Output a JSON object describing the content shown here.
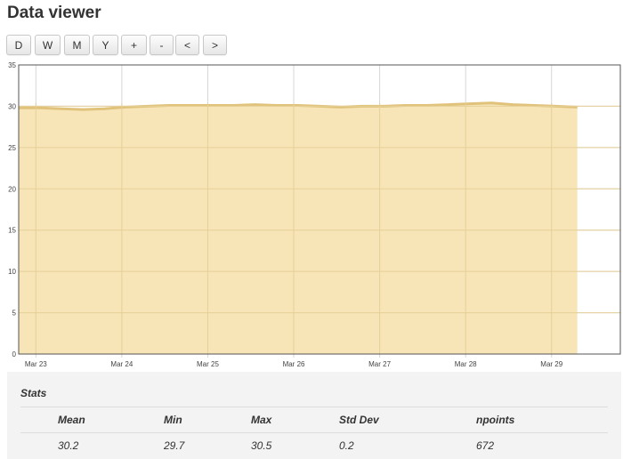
{
  "page": {
    "title": "Data viewer"
  },
  "toolbar": {
    "buttons": [
      {
        "label": "D"
      },
      {
        "label": "W"
      },
      {
        "label": "M"
      },
      {
        "label": "Y"
      },
      {
        "label": "+"
      },
      {
        "label": "-"
      },
      {
        "label": "<"
      },
      {
        "label": ">"
      }
    ]
  },
  "chart_data": {
    "type": "area",
    "title": "",
    "xlabel": "",
    "ylabel": "",
    "ylim": [
      0,
      35
    ],
    "yticks": [
      0,
      5,
      10,
      15,
      20,
      25,
      30,
      35
    ],
    "xtick_labels": [
      "Mar 23",
      "Mar 24",
      "Mar 25",
      "Mar 26",
      "Mar 27",
      "Mar 28",
      "Mar 29"
    ],
    "grid": true,
    "series": [
      {
        "values": [
          29.8,
          29.8,
          29.7,
          29.6,
          29.7,
          29.9,
          30.0,
          30.1,
          30.1,
          30.1,
          30.1,
          30.2,
          30.1,
          30.1,
          30.0,
          29.9,
          30.0,
          30.0,
          30.1,
          30.1,
          30.2,
          30.3,
          30.4,
          30.2,
          30.1,
          30.0,
          29.9
        ],
        "x_start_day": 22.8,
        "x_step_days": 0.25
      }
    ],
    "fill_color": "#f7e4b3",
    "line_color": "#e0c27a"
  },
  "stats": {
    "title": "Stats",
    "headers": [
      "Mean",
      "Min",
      "Max",
      "Std Dev",
      "npoints"
    ],
    "values": [
      "30.2",
      "29.7",
      "30.5",
      "0.2",
      "672"
    ]
  }
}
